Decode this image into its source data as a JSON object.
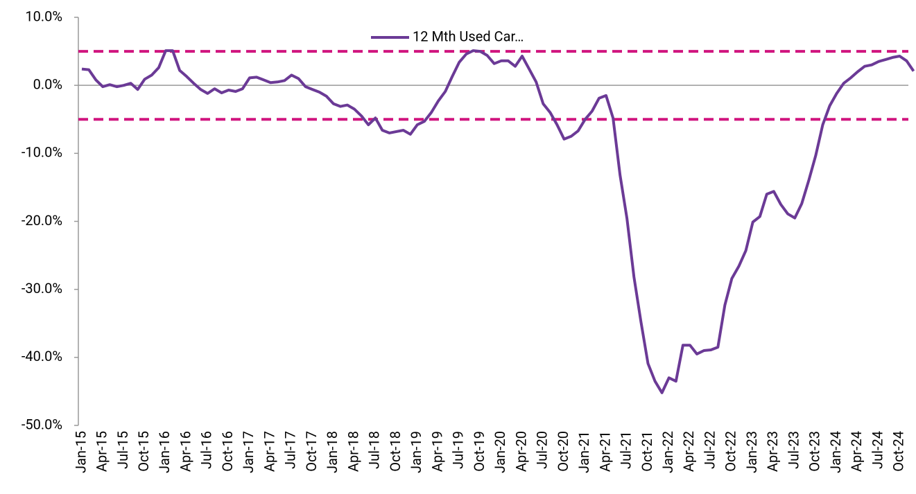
{
  "chart_data": {
    "type": "line",
    "categories": [
      "Jan-15",
      null,
      null,
      "Apr-15",
      null,
      null,
      "Jul-15",
      null,
      null,
      "Oct-15",
      null,
      null,
      "Jan-16",
      null,
      null,
      "Apr-16",
      null,
      null,
      "Jul-16",
      null,
      null,
      "Oct-16",
      null,
      null,
      "Jan-17",
      null,
      null,
      "Apr-17",
      null,
      null,
      "Jul-17",
      null,
      null,
      "Oct-17",
      null,
      null,
      "Jan-18",
      null,
      null,
      "Apr-18",
      null,
      null,
      "Jul-18",
      null,
      null,
      "Oct-18",
      null,
      null,
      "Jan-19",
      null,
      null,
      "Apr-19",
      null,
      null,
      "Jul-19",
      null,
      null,
      "Oct-19",
      null,
      null,
      "Jan-20",
      null,
      null,
      "Apr-20",
      null,
      null,
      "Jul-20",
      null,
      null,
      "Oct-20",
      null,
      null,
      "Jan-21",
      null,
      null,
      "Apr-21",
      null,
      null,
      "Jul-21",
      null,
      null,
      "Oct-21",
      null,
      null,
      "Jan-22",
      null,
      null,
      "Apr-22",
      null,
      null,
      "Jul-22",
      null,
      null,
      "Oct-22",
      null,
      null,
      "Jan-23",
      null,
      null,
      "Apr-23",
      null,
      null,
      "Jul-23",
      null,
      null,
      "Oct-23",
      null,
      null,
      "Jan-24",
      null,
      null,
      "Apr-24",
      null,
      null,
      "Jul-24",
      null,
      null,
      "Oct-24",
      null,
      null
    ],
    "series": [
      {
        "name": "12 Mth Used Car…",
        "color": "#6b3a96",
        "values": [
          2.4,
          2.3,
          0.8,
          -0.2,
          0.1,
          -0.2,
          0.0,
          0.3,
          -0.6,
          0.9,
          1.5,
          2.6,
          5.1,
          5.1,
          2.2,
          1.3,
          0.3,
          -0.6,
          -1.2,
          -0.5,
          -1.1,
          -0.7,
          -0.9,
          -0.5,
          1.1,
          1.2,
          0.8,
          0.4,
          0.5,
          0.7,
          1.5,
          1.0,
          -0.2,
          -0.6,
          -1.0,
          -1.6,
          -2.7,
          -3.1,
          -2.9,
          -3.5,
          -4.5,
          -5.8,
          -4.8,
          -6.6,
          -7.0,
          -6.8,
          -6.6,
          -7.2,
          -5.8,
          -5.3,
          -4.0,
          -2.3,
          -0.9,
          1.3,
          3.4,
          4.6,
          5.1,
          5.0,
          4.4,
          3.2,
          3.6,
          3.6,
          2.8,
          4.3,
          2.4,
          0.5,
          -2.7,
          -4.0,
          -5.8,
          -7.9,
          -7.5,
          -6.7,
          -5.0,
          -3.8,
          -1.9,
          -1.5,
          -4.8,
          -13.2,
          -19.6,
          -28.2,
          -34.8,
          -40.9,
          -43.5,
          -45.2,
          -43.0,
          -43.5,
          -38.2,
          -38.2,
          -39.5,
          -39.0,
          -38.9,
          -38.5,
          -32.3,
          -28.4,
          -26.6,
          -24.3,
          -20.1,
          -19.3,
          -16.0,
          -15.6,
          -17.5,
          -18.9,
          -19.5,
          -17.4,
          -14.0,
          -10.3,
          -5.8,
          -3.0,
          -1.2,
          0.3,
          1.1,
          2.0,
          2.8,
          3.0,
          3.5,
          3.8,
          4.1,
          4.3,
          3.6,
          2.1
        ]
      }
    ],
    "reference_lines": [
      5,
      -5
    ],
    "reference_color": "#d0157f",
    "ylim": [
      -50,
      10
    ],
    "yticks": [
      {
        "value": -50,
        "label": "-50.0%"
      },
      {
        "value": -40,
        "label": "-40.0%"
      },
      {
        "value": -30,
        "label": "-30.0%"
      },
      {
        "value": -20,
        "label": "-20.0%"
      },
      {
        "value": -10,
        "label": "-10.0%"
      },
      {
        "value": 0,
        "label": "0.0%"
      },
      {
        "value": 10,
        "label": "10.0%"
      }
    ],
    "legend": "top"
  }
}
